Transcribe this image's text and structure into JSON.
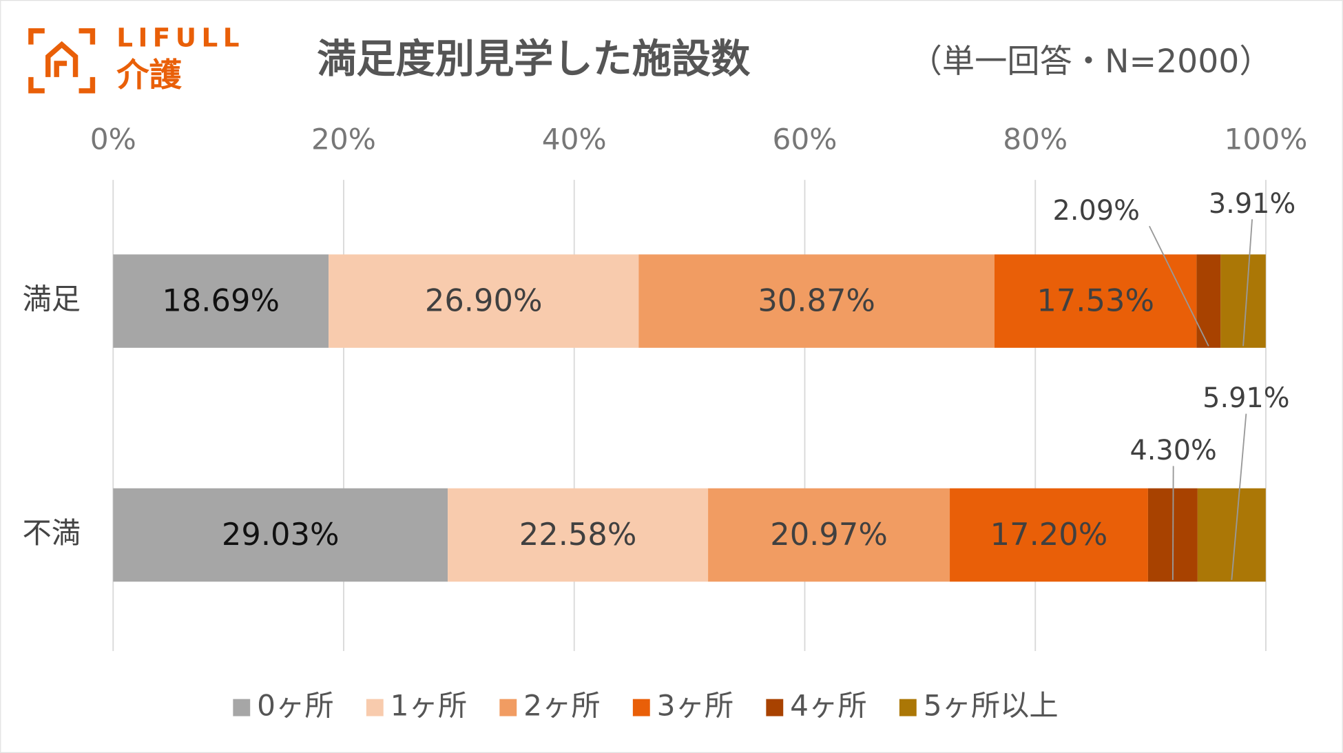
{
  "logo": {
    "brand": "LIFULL",
    "service": "介護"
  },
  "chart_data": {
    "type": "stacked_barh",
    "title": "満足度別見学した施設数",
    "subtitle": "（単一回答・N=2000）",
    "categories": [
      "満足",
      "不満"
    ],
    "xlim": [
      0,
      100
    ],
    "xticks": [
      {
        "value": 0,
        "label": "0%"
      },
      {
        "value": 20,
        "label": "20%"
      },
      {
        "value": 40,
        "label": "40%"
      },
      {
        "value": 60,
        "label": "60%"
      },
      {
        "value": 80,
        "label": "80%"
      },
      {
        "value": 100,
        "label": "100%"
      }
    ],
    "grid": true,
    "legend": "bottom",
    "series": [
      {
        "name": "0ヶ所",
        "color": "#a6a6a6",
        "values": [
          18.69,
          29.03
        ],
        "value_labels": [
          "18.69%",
          "29.03%"
        ]
      },
      {
        "name": "1ヶ所",
        "color": "#f8cbad",
        "values": [
          26.9,
          22.58
        ],
        "value_labels": [
          "26.90%",
          "22.58%"
        ]
      },
      {
        "name": "2ヶ所",
        "color": "#f19c62",
        "values": [
          30.87,
          20.97
        ],
        "value_labels": [
          "30.87%",
          "20.97%"
        ]
      },
      {
        "name": "3ヶ所",
        "color": "#e95f08",
        "values": [
          17.53,
          17.2
        ],
        "value_labels": [
          "17.53%",
          "17.20%"
        ]
      },
      {
        "name": "4ヶ所",
        "color": "#a84200",
        "values": [
          2.09,
          4.3
        ],
        "value_labels": [
          "2.09%",
          "4.30%"
        ]
      },
      {
        "name": "5ヶ所以上",
        "color": "#ab7706",
        "values": [
          3.91,
          5.91
        ],
        "value_labels": [
          "3.91%",
          "5.91%"
        ]
      }
    ]
  }
}
